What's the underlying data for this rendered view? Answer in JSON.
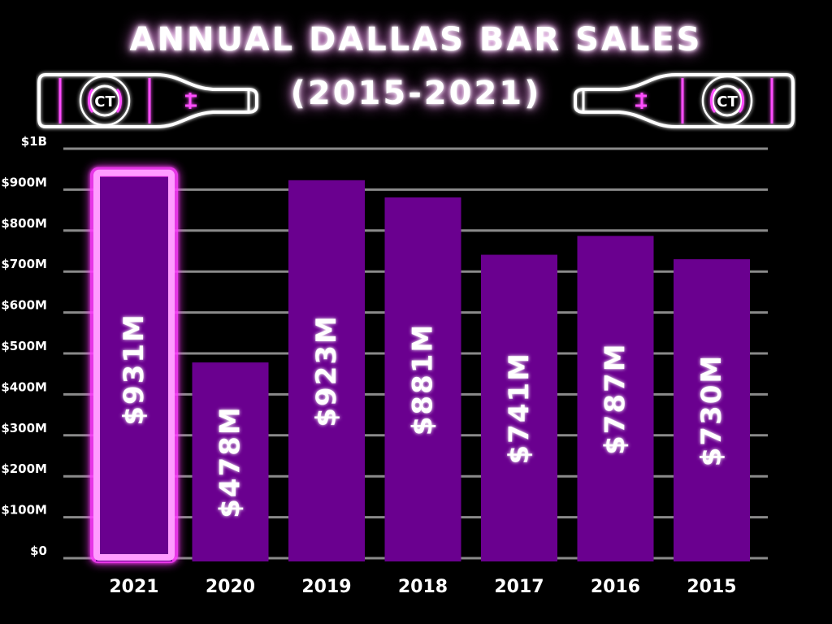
{
  "title_line_1": "ANNUAL DALLAS BAR SALES",
  "title_line_2": "(2015-2021)",
  "logo_text": "CT",
  "colors": {
    "background": "#000000",
    "bar": "#6a008f",
    "highlight_border": "#ff9cff",
    "highlight_glow": "#ff3dff",
    "gridline": "#8a8a8a",
    "text": "#ffffff"
  },
  "icons": [
    "beer-bottle-icon",
    "ct-logo-icon"
  ],
  "chart_data": {
    "type": "bar",
    "title": "ANNUAL DALLAS BAR SALES (2015-2021)",
    "categories": [
      "2021",
      "2020",
      "2019",
      "2018",
      "2017",
      "2016",
      "2015"
    ],
    "values": [
      931,
      478,
      923,
      881,
      741,
      787,
      730
    ],
    "value_unit": "million USD",
    "data_labels": [
      "$931M",
      "$478M",
      "$923M",
      "$881M",
      "$741M",
      "$787M",
      "$730M"
    ],
    "highlighted_category": "2021",
    "y_ticks": [
      0,
      100,
      200,
      300,
      400,
      500,
      600,
      700,
      800,
      900,
      1000
    ],
    "y_tick_labels": [
      "$0",
      "$100M",
      "$200M",
      "$300M",
      "$400M",
      "$500M",
      "$600M",
      "$700M",
      "$800M",
      "$900M",
      "$1B"
    ],
    "ylim": [
      0,
      1000
    ],
    "xlabel": "",
    "ylabel": "",
    "grid": true,
    "legend": "none"
  }
}
